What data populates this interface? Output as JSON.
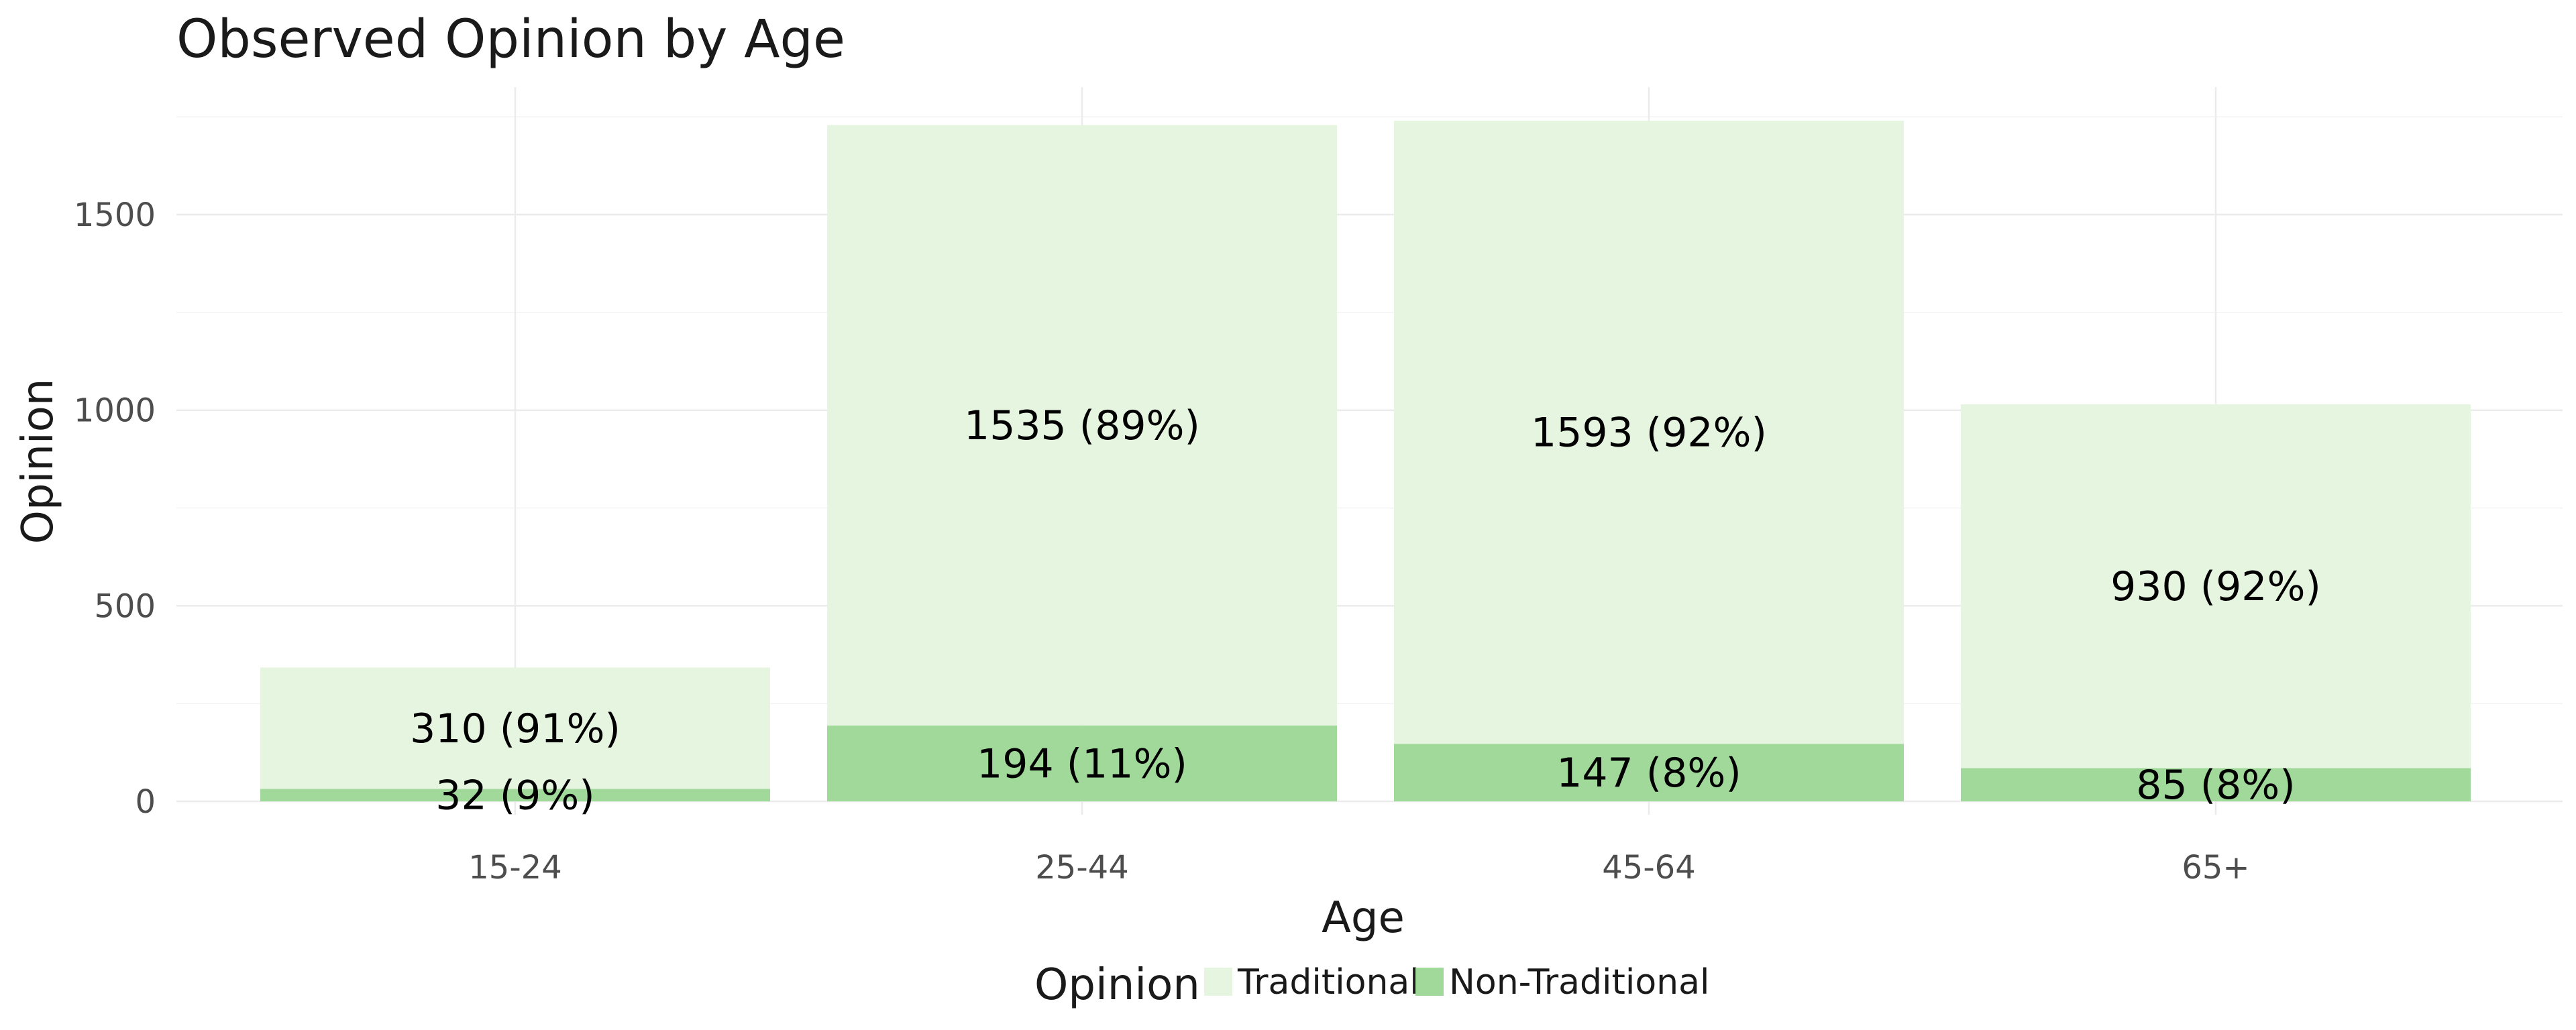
{
  "chart_data": {
    "type": "bar",
    "stacked": true,
    "title": "Observed Opinion by Age",
    "xlabel": "Age",
    "ylabel": "Opinion",
    "categories": [
      "15-24",
      "25-44",
      "45-64",
      "65+"
    ],
    "series": [
      {
        "name": "Traditional",
        "color": "#e5f5e0",
        "values": [
          310,
          1535,
          1593,
          930
        ],
        "labels": [
          "310 (91%)",
          "1535 (89%)",
          "1593 (92%)",
          "930 (92%)"
        ]
      },
      {
        "name": "Non-Traditional",
        "color": "#a1d99b",
        "values": [
          32,
          194,
          147,
          85
        ],
        "labels": [
          "32 (9%)",
          "194 (11%)",
          "147 (8%)",
          "85 (8%)"
        ]
      }
    ],
    "ylim": [
      0,
      1750
    ],
    "yticks": [
      0,
      500,
      1000,
      1500
    ],
    "grid": true,
    "legend": {
      "title": "Opinion",
      "position": "bottom"
    }
  }
}
